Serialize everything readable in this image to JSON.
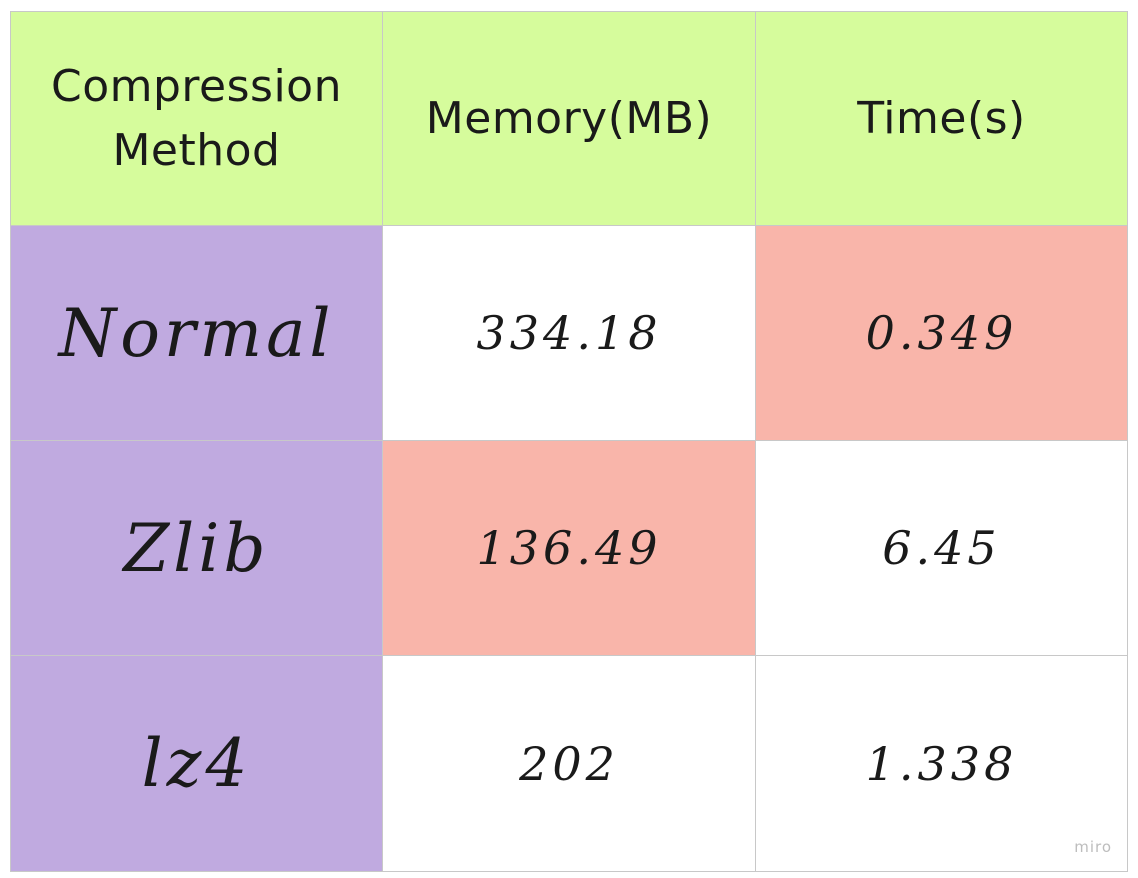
{
  "table": {
    "headers": [
      "Compression\nMethod",
      "Memory(MB)",
      "Time(s)"
    ],
    "rows": [
      {
        "method": "Normal",
        "memory": "334.18",
        "time": "0.349"
      },
      {
        "method": "Zlib",
        "memory": "136.49",
        "time": "6.45"
      },
      {
        "method": "lz4",
        "memory": "202",
        "time": "1.338"
      }
    ]
  },
  "colors": {
    "header_bg": "#d6fc9c",
    "method_bg": "#c0aae0",
    "highlight_bg": "#f9b5aa",
    "cell_bg": "#ffffff",
    "border": "#c8c8c8"
  },
  "watermark": "miro"
}
